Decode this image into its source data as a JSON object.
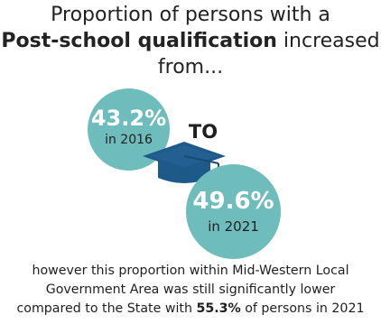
{
  "headline": {
    "line1": "Proportion of persons with a",
    "line2_bold": "Post-school qualification",
    "line2_rest": " increased",
    "line3": "from..."
  },
  "stat_2016": {
    "value": "43.2%",
    "label": "in 2016"
  },
  "connector": {
    "label": "TO"
  },
  "stat_2021": {
    "value": "49.6%",
    "label": "in 2021"
  },
  "footer": {
    "line1": "however this proportion within Mid-Western Local",
    "line2": "Government Area was still significantly lower",
    "line3_start": "compared to the State with ",
    "line3_bold": "55.3%",
    "line3_end": " of persons in 2021"
  },
  "colors": {
    "circle": "#6fbcbc",
    "cap": "#1d5a8a",
    "text": "#1f1f1f"
  },
  "icons": {
    "cap": "graduation-cap-icon"
  }
}
